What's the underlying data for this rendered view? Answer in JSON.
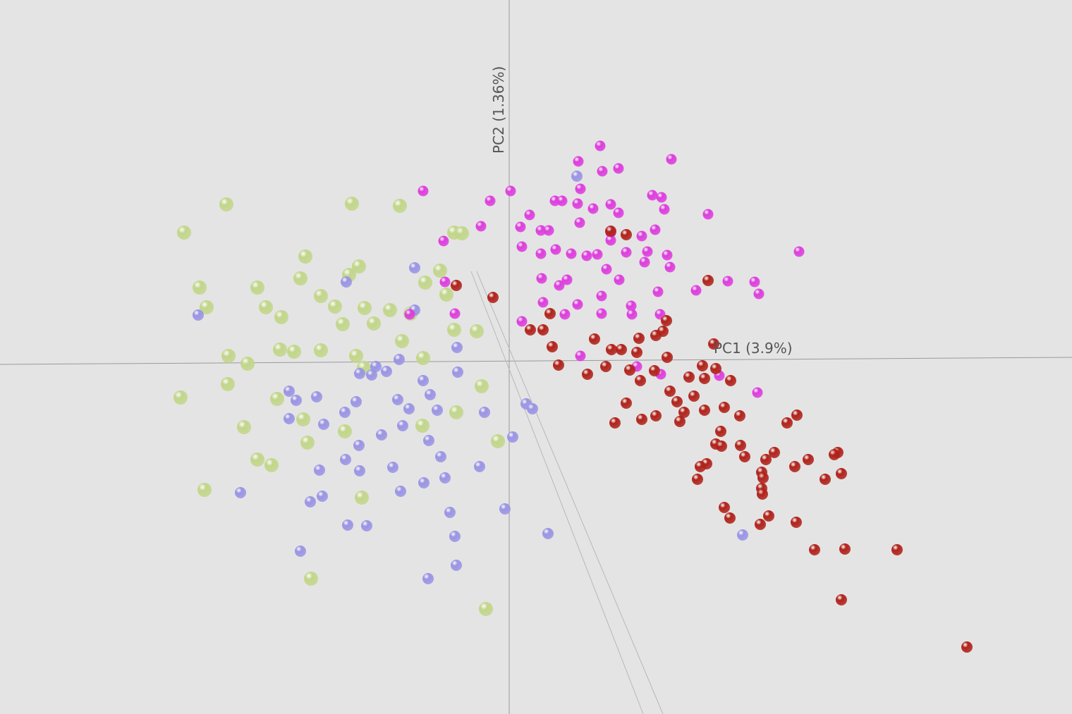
{
  "chart_data": {
    "type": "scatter",
    "x_label": "PC1 (3.9%)",
    "y_label": "PC2 (1.36%)",
    "xlim": [
      -722,
      798
    ],
    "ylim": [
      -498,
      515
    ],
    "series": [
      {
        "color": "#c2d68a",
        "x": [
          -401,
          -461,
          -223,
          -155,
          -289,
          -439,
          -429,
          -357,
          -296,
          -213,
          -227,
          -345,
          -323,
          -267,
          -247,
          -205,
          -169,
          -140,
          -89,
          -119,
          -98,
          -78,
          -67,
          -398,
          -371,
          -325,
          -305,
          -267,
          -217,
          -206,
          -152,
          -122,
          -466,
          -399,
          -376,
          -357,
          -337,
          -329,
          -286,
          -233,
          -209,
          -281,
          -33,
          -432,
          -123,
          -75,
          -39,
          -16,
          -46,
          -78,
          -192,
          -236,
          -292
        ],
        "values": [
          225,
          185,
          226,
          223,
          151,
          107,
          79,
          107,
          120,
          137,
          125,
          79,
          65,
          95,
          80,
          78,
          75,
          70,
          97,
          114,
          131,
          185,
          184,
          10,
          -1,
          19,
          16,
          18,
          10,
          -7,
          31,
          7,
          -49,
          -30,
          -91,
          -137,
          -145,
          -51,
          -113,
          -97,
          -191,
          -306,
          -349,
          -180,
          -89,
          -70,
          -33,
          -111,
          45,
          47,
          56,
          55,
          -80
        ]
      },
      {
        "color": "#9a94e4",
        "x": [
          96,
          -134,
          -231,
          -134,
          -312,
          -302,
          -273,
          -312,
          -263,
          -233,
          -217,
          -195,
          -174,
          -158,
          -142,
          -112,
          -102,
          -74,
          -73,
          -35,
          5,
          24,
          33,
          -42,
          -114,
          -97,
          -91,
          -121,
          -154,
          -165,
          -212,
          -232,
          -265,
          -282,
          -269,
          -213,
          -181,
          -151,
          -229,
          -202,
          -84,
          -77,
          -6,
          55,
          -75,
          -115,
          -296,
          -381,
          331,
          -441,
          -212,
          -189,
          -156,
          -122
        ],
        "values": [
          265,
          135,
          115,
          75,
          -40,
          -53,
          -48,
          -79,
          -87,
          -70,
          -55,
          -17,
          -12,
          -52,
          -65,
          -45,
          -67,
          22,
          -13,
          -70,
          -105,
          -58,
          -65,
          -147,
          -110,
          -133,
          -163,
          -170,
          -182,
          -148,
          -153,
          -137,
          -189,
          -197,
          -152,
          -117,
          -102,
          -89,
          -230,
          -231,
          -212,
          -246,
          -207,
          -242,
          -287,
          -306,
          -267,
          -184,
          -244,
          68,
          -15,
          -5,
          5,
          -25
        ]
      },
      {
        "color": "#dd3ddd",
        "x": [
          129,
          230,
          98,
          132,
          155,
          101,
          -122,
          2,
          -27,
          65,
          75,
          97,
          119,
          144,
          155,
          203,
          216,
          220,
          282,
          29,
          -40,
          -93,
          16,
          45,
          56,
          100,
          144,
          188,
          207,
          18,
          45,
          66,
          88,
          110,
          125,
          144,
          166,
          196,
          224,
          82,
          71,
          46,
          138,
          156,
          192,
          228,
          211,
          265,
          310,
          354,
          348,
          411,
          131,
          97,
          79,
          48,
          18,
          131,
          173,
          174,
          214,
          -91,
          -77,
          -141,
          352,
          298,
          215,
          181,
          101
        ],
        "values": [
          308,
          289,
          286,
          272,
          276,
          247,
          244,
          244,
          230,
          230,
          230,
          226,
          219,
          225,
          213,
          238,
          235,
          218,
          211,
          210,
          194,
          173,
          193,
          188,
          188,
          199,
          185,
          180,
          189,
          165,
          155,
          161,
          155,
          152,
          154,
          174,
          157,
          158,
          153,
          118,
          110,
          120,
          133,
          118,
          143,
          136,
          101,
          103,
          116,
          98,
          115,
          158,
          95,
          83,
          69,
          86,
          59,
          70,
          81,
          69,
          69,
          115,
          70,
          69,
          -42,
          -18,
          -16,
          -5,
          10
        ]
      },
      {
        "color": "#b0221a",
        "x": [
          -75,
          -23,
          144,
          166,
          282,
          58,
          30,
          48,
          61,
          121,
          145,
          159,
          208,
          223,
          218,
          184,
          70,
          111,
          137,
          181,
          224,
          274,
          293,
          290,
          171,
          186,
          206,
          255,
          277,
          314,
          166,
          150,
          188,
          208,
          228,
          238,
          248,
          262,
          277,
          305,
          327,
          408,
          394,
          300,
          293,
          301,
          328,
          334,
          376,
          364,
          424,
          405,
          280,
          271,
          267,
          358,
          360,
          358,
          359,
          466,
          461,
          471,
          448,
          305,
          313,
          368,
          356,
          407,
          433,
          476,
          550,
          471,
          649,
          242
        ],
        "values": [
          110,
          93,
          187,
          182,
          117,
          70,
          47,
          47,
          23,
          34,
          19,
          19,
          39,
          60,
          45,
          35,
          -3,
          -16,
          -5,
          15,
          8,
          -4,
          -8,
          27,
          -10,
          -25,
          -11,
          -20,
          -22,
          -25,
          -57,
          -85,
          -80,
          -75,
          -40,
          -55,
          -70,
          -47,
          -67,
          -63,
          -75,
          -74,
          -85,
          -97,
          -115,
          -118,
          -117,
          -133,
          -127,
          -137,
          -137,
          -147,
          -143,
          -147,
          -165,
          -155,
          -163,
          -178,
          -186,
          -127,
          -130,
          -157,
          -165,
          -205,
          -220,
          -217,
          -229,
          -226,
          -265,
          -264,
          -265,
          -336,
          -403,
          -83
        ]
      }
    ]
  }
}
